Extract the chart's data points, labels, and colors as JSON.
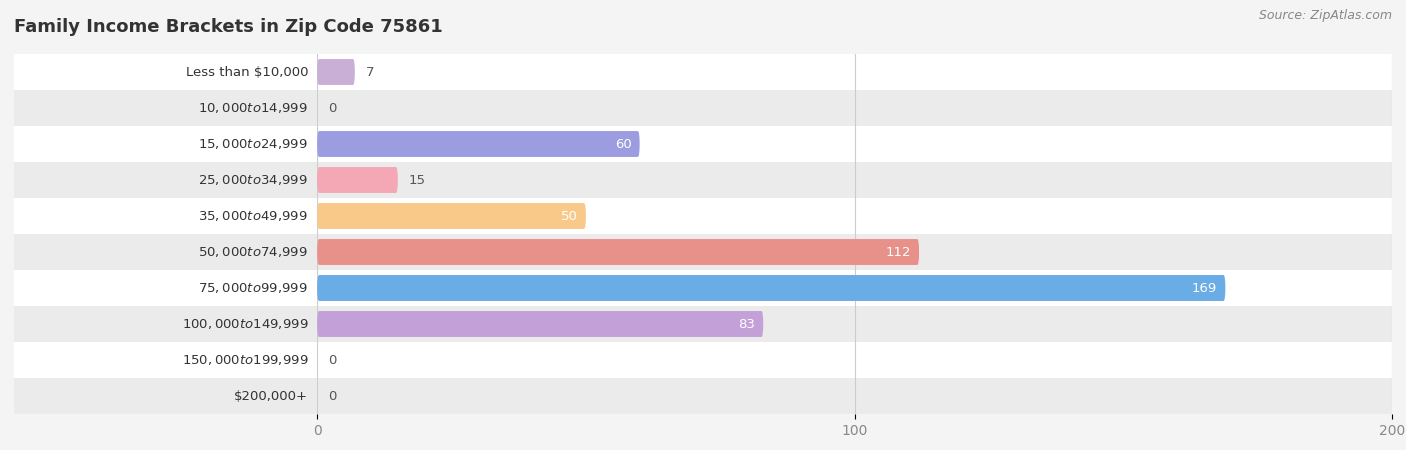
{
  "title": "Family Income Brackets in Zip Code 75861",
  "source": "Source: ZipAtlas.com",
  "categories": [
    "Less than $10,000",
    "$10,000 to $14,999",
    "$15,000 to $24,999",
    "$25,000 to $34,999",
    "$35,000 to $49,999",
    "$50,000 to $74,999",
    "$75,000 to $99,999",
    "$100,000 to $149,999",
    "$150,000 to $199,999",
    "$200,000+"
  ],
  "values": [
    7,
    0,
    60,
    15,
    50,
    112,
    169,
    83,
    0,
    0
  ],
  "bar_colors": [
    "#c9aed6",
    "#7ecec4",
    "#9b9de0",
    "#f4a7b4",
    "#f9c98a",
    "#e8908a",
    "#6aace6",
    "#c4a0d8",
    "#7ecec4",
    "#b0b8f0"
  ],
  "background_color": "#f4f4f4",
  "row_bg_even": "#ffffff",
  "row_bg_odd": "#ebebeb",
  "xlim": [
    0,
    200
  ],
  "xticks": [
    0,
    100,
    200
  ],
  "label_color_outside": "#555555",
  "label_color_inside": "#ffffff",
  "title_fontsize": 13,
  "label_fontsize": 9.5,
  "tick_fontsize": 10,
  "category_fontsize": 9.5
}
